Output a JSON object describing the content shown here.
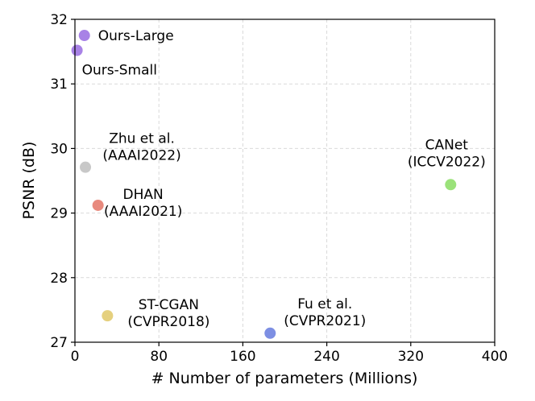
{
  "chart_data": {
    "type": "scatter",
    "title": "",
    "xlabel": "# Number of parameters (Millions)",
    "ylabel": "PSNR (dB)",
    "xlim": [
      0,
      400
    ],
    "ylim": [
      27,
      32
    ],
    "xticks": [
      0,
      80,
      160,
      240,
      320,
      400
    ],
    "yticks": [
      27,
      28,
      29,
      30,
      31,
      32
    ],
    "grid": true,
    "series": [
      {
        "name": "Ours-Large",
        "x": 9,
        "y": 31.75,
        "color": "#a882e6",
        "label_lines": [
          "Ours-Large"
        ],
        "label_position": "right"
      },
      {
        "name": "Ours-Small",
        "x": 2,
        "y": 31.52,
        "color": "#a882e6",
        "label_lines": [
          "Ours-Small"
        ],
        "label_position": "below-right"
      },
      {
        "name": "Zhu et al.",
        "x": 10,
        "y": 29.71,
        "color": "#c8c8c8",
        "label_lines": [
          "Zhu et al.",
          "(AAAI2022)"
        ],
        "label_position": "above-right"
      },
      {
        "name": "DHAN",
        "x": 22,
        "y": 29.12,
        "color": "#e88a7e",
        "label_lines": [
          "DHAN",
          "(AAAI2021)"
        ],
        "label_position": "right"
      },
      {
        "name": "CANet",
        "x": 358,
        "y": 29.44,
        "color": "#9be27a",
        "label_lines": [
          "CANet",
          "(ICCV2022)"
        ],
        "label_position": "above"
      },
      {
        "name": "ST-CGAN",
        "x": 31,
        "y": 27.41,
        "color": "#e5d07e",
        "label_lines": [
          "ST-CGAN",
          "(CVPR2018)"
        ],
        "label_position": "right"
      },
      {
        "name": "Fu et al.",
        "x": 186,
        "y": 27.14,
        "color": "#7d8fe3",
        "label_lines": [
          "Fu et al.",
          "(CVPR2021)"
        ],
        "label_position": "above-right"
      }
    ]
  }
}
